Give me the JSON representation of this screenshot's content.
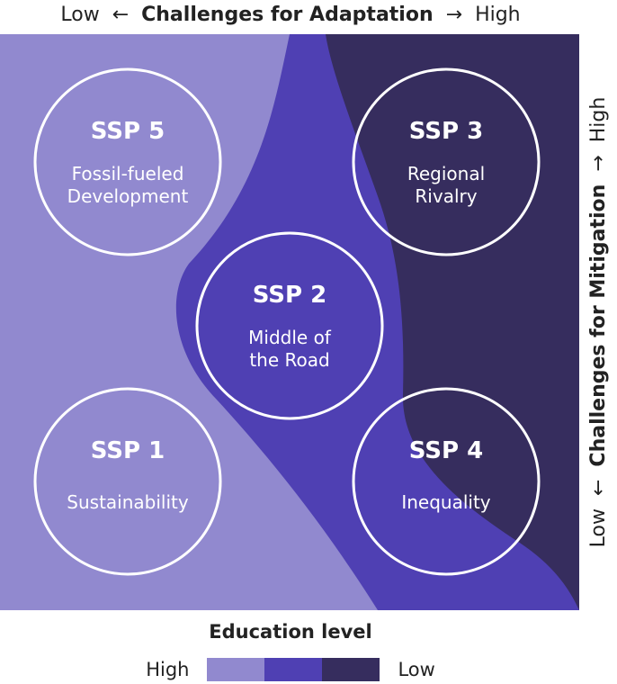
{
  "top_axis": {
    "low": "Low",
    "left_arrow": "←",
    "title": "Challenges for Adaptation",
    "right_arrow": "→",
    "high": "High"
  },
  "right_axis": {
    "low": "Low",
    "down_arrow": "←",
    "title": "Challenges for Mitigation",
    "up_arrow": "→",
    "high": "High"
  },
  "colors": {
    "high_education": "#9189cf",
    "mid_education": "#4f40b3",
    "low_education": "#362d5e",
    "circle_stroke": "#ffffff"
  },
  "scenarios": [
    {
      "id": "ssp5",
      "title": "SSP 5",
      "lines": [
        "Fossil-fueled",
        "Development"
      ]
    },
    {
      "id": "ssp3",
      "title": "SSP 3",
      "lines": [
        "Regional",
        "Rivalry"
      ]
    },
    {
      "id": "ssp2",
      "title": "SSP 2",
      "lines": [
        "Middle of",
        "the Road"
      ]
    },
    {
      "id": "ssp1",
      "title": "SSP 1",
      "lines": [
        "Sustainability"
      ]
    },
    {
      "id": "ssp4",
      "title": "SSP 4",
      "lines": [
        "Inequality"
      ]
    }
  ],
  "legend": {
    "title": "Education level",
    "high": "High",
    "low": "Low"
  }
}
